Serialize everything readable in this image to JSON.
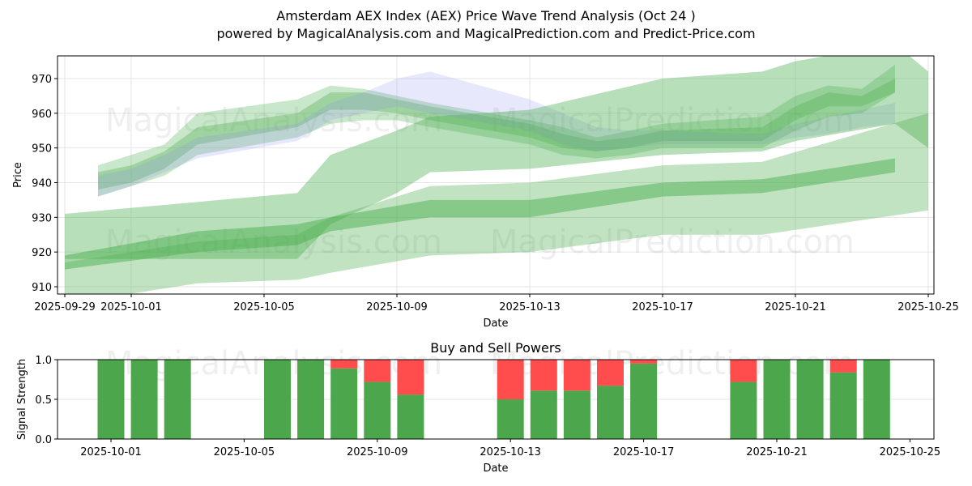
{
  "header": {
    "title": "Amsterdam AEX Index (AEX) Price Wave Trend Analysis (Oct 24 )",
    "subtitle": "powered by MagicalAnalysis.com and MagicalPrediction.com and Predict-Price.com"
  },
  "watermarks": [
    "MagicalAnalysis.com",
    "MagicalPrediction.com"
  ],
  "colors": {
    "buy": "#4ca64c",
    "sell": "#ff4c4c",
    "band_green": "#4caf50",
    "band_blue": "#8c8cf0",
    "grid": "#e6e6e6"
  },
  "chart_data": [
    {
      "type": "area",
      "title": "",
      "xlabel": "Date",
      "ylabel": "Price",
      "x_ticks": [
        "2025-09-29",
        "2025-10-01",
        "2025-10-05",
        "2025-10-09",
        "2025-10-13",
        "2025-10-17",
        "2025-10-21",
        "2025-10-25"
      ],
      "y_ticks": [
        910,
        920,
        930,
        940,
        950,
        960,
        970
      ],
      "xlim": [
        "2025-09-29",
        "2025-10-25"
      ],
      "ylim": [
        908,
        976
      ],
      "grid": true,
      "series": [
        {
          "name": "wave-upper-1",
          "color": "green",
          "opacity": 0.3,
          "x": [
            "2025-09-30",
            "2025-10-01",
            "2025-10-02",
            "2025-10-03",
            "2025-10-06",
            "2025-10-07",
            "2025-10-08",
            "2025-10-09",
            "2025-10-10",
            "2025-10-13",
            "2025-10-14",
            "2025-10-15",
            "2025-10-16",
            "2025-10-17",
            "2025-10-20",
            "2025-10-21",
            "2025-10-22",
            "2025-10-23",
            "2025-10-24"
          ],
          "upper": [
            945,
            948,
            951,
            960,
            964,
            968,
            967,
            965,
            963,
            958,
            956,
            953,
            955,
            957,
            959,
            965,
            968,
            967,
            974
          ],
          "lower": [
            936,
            939,
            942,
            948,
            953,
            957,
            958,
            958,
            956,
            951,
            948,
            947,
            948,
            950,
            950,
            955,
            959,
            960,
            966
          ]
        },
        {
          "name": "wave-upper-2",
          "color": "green",
          "opacity": 0.35,
          "x": [
            "2025-09-30",
            "2025-10-01",
            "2025-10-02",
            "2025-10-03",
            "2025-10-06",
            "2025-10-07",
            "2025-10-08",
            "2025-10-09",
            "2025-10-10",
            "2025-10-13",
            "2025-10-14",
            "2025-10-15",
            "2025-10-16",
            "2025-10-17",
            "2025-10-20",
            "2025-10-21",
            "2025-10-22",
            "2025-10-23",
            "2025-10-24"
          ],
          "upper": [
            943,
            945,
            949,
            956,
            960,
            966,
            966,
            964,
            962,
            957,
            954,
            952,
            953,
            955,
            956,
            962,
            966,
            965,
            970
          ],
          "lower": [
            938,
            940,
            944,
            951,
            956,
            961,
            961,
            960,
            958,
            953,
            950,
            949,
            950,
            952,
            952,
            958,
            962,
            962,
            966
          ]
        },
        {
          "name": "wave-upper-blue",
          "color": "blue",
          "opacity": 0.2,
          "x": [
            "2025-09-30",
            "2025-10-01",
            "2025-10-02",
            "2025-10-03",
            "2025-10-06",
            "2025-10-07",
            "2025-10-08",
            "2025-10-09",
            "2025-10-10",
            "2025-10-13",
            "2025-10-14",
            "2025-10-15",
            "2025-10-16",
            "2025-10-17",
            "2025-10-20",
            "2025-10-21",
            "2025-10-22",
            "2025-10-23",
            "2025-10-24"
          ],
          "upper": [
            942,
            944,
            948,
            953,
            957,
            963,
            966,
            970,
            972,
            964,
            960,
            956,
            955,
            955,
            954,
            957,
            959,
            961,
            963
          ],
          "lower": [
            936,
            939,
            943,
            947,
            952,
            958,
            960,
            962,
            960,
            955,
            951,
            949,
            950,
            951,
            951,
            953,
            954,
            956,
            957
          ]
        },
        {
          "name": "wave-mid",
          "color": "green",
          "opacity": 0.4,
          "x": [
            "2025-09-29",
            "2025-10-06",
            "2025-10-07",
            "2025-10-09",
            "2025-10-10",
            "2025-10-13",
            "2025-10-17",
            "2025-10-20",
            "2025-10-21",
            "2025-10-24",
            "2025-10-25"
          ],
          "upper": [
            931,
            937,
            948,
            955,
            959,
            961,
            970,
            972,
            975,
            980,
            972
          ],
          "lower": [
            918,
            918,
            928,
            937,
            943,
            944,
            948,
            949,
            952,
            957,
            950
          ]
        },
        {
          "name": "wave-lower-1",
          "color": "green",
          "opacity": 0.5,
          "x": [
            "2025-09-29",
            "2025-10-03",
            "2025-10-06",
            "2025-10-07",
            "2025-10-10",
            "2025-10-13",
            "2025-10-17",
            "2025-10-20",
            "2025-10-24"
          ],
          "upper": [
            919,
            926,
            928,
            930,
            935,
            935,
            940,
            941,
            947
          ],
          "lower": [
            915,
            920,
            922,
            926,
            930,
            930,
            936,
            937,
            943
          ]
        },
        {
          "name": "wave-lower-2",
          "color": "green",
          "opacity": 0.35,
          "x": [
            "2025-09-29",
            "2025-10-03",
            "2025-10-06",
            "2025-10-07",
            "2025-10-10",
            "2025-10-13",
            "2025-10-17",
            "2025-10-20",
            "2025-10-25"
          ],
          "upper": [
            917,
            923,
            925,
            930,
            939,
            940,
            945,
            946,
            960
          ],
          "lower": [
            905,
            911,
            912,
            914,
            919,
            920,
            925,
            925,
            932
          ]
        }
      ]
    },
    {
      "type": "bar",
      "title": "Buy and Sell Powers",
      "xlabel": "Date",
      "ylabel": "Signal Strength",
      "x_ticks": [
        "2025-10-01",
        "2025-10-05",
        "2025-10-09",
        "2025-10-13",
        "2025-10-17",
        "2025-10-21",
        "2025-10-25"
      ],
      "y_ticks": [
        "0.0",
        "0.5",
        "1.0"
      ],
      "ylim": [
        0,
        1
      ],
      "grid": true,
      "categories": [
        "2025-10-01",
        "2025-10-02",
        "2025-10-03",
        "2025-10-06",
        "2025-10-07",
        "2025-10-08",
        "2025-10-09",
        "2025-10-10",
        "2025-10-13",
        "2025-10-14",
        "2025-10-15",
        "2025-10-16",
        "2025-10-17",
        "2025-10-20",
        "2025-10-21",
        "2025-10-22",
        "2025-10-23",
        "2025-10-24"
      ],
      "series": [
        {
          "name": "Buy",
          "values": [
            1.0,
            1.0,
            1.0,
            1.0,
            1.0,
            0.89,
            0.72,
            0.56,
            0.5,
            0.61,
            0.61,
            0.67,
            0.95,
            0.72,
            1.0,
            1.0,
            0.84,
            1.0
          ]
        },
        {
          "name": "Sell",
          "values": [
            0.0,
            0.0,
            0.0,
            0.0,
            0.0,
            0.11,
            0.28,
            0.44,
            0.5,
            0.39,
            0.39,
            0.33,
            0.05,
            0.28,
            0.0,
            0.0,
            0.16,
            0.0
          ]
        }
      ]
    }
  ]
}
